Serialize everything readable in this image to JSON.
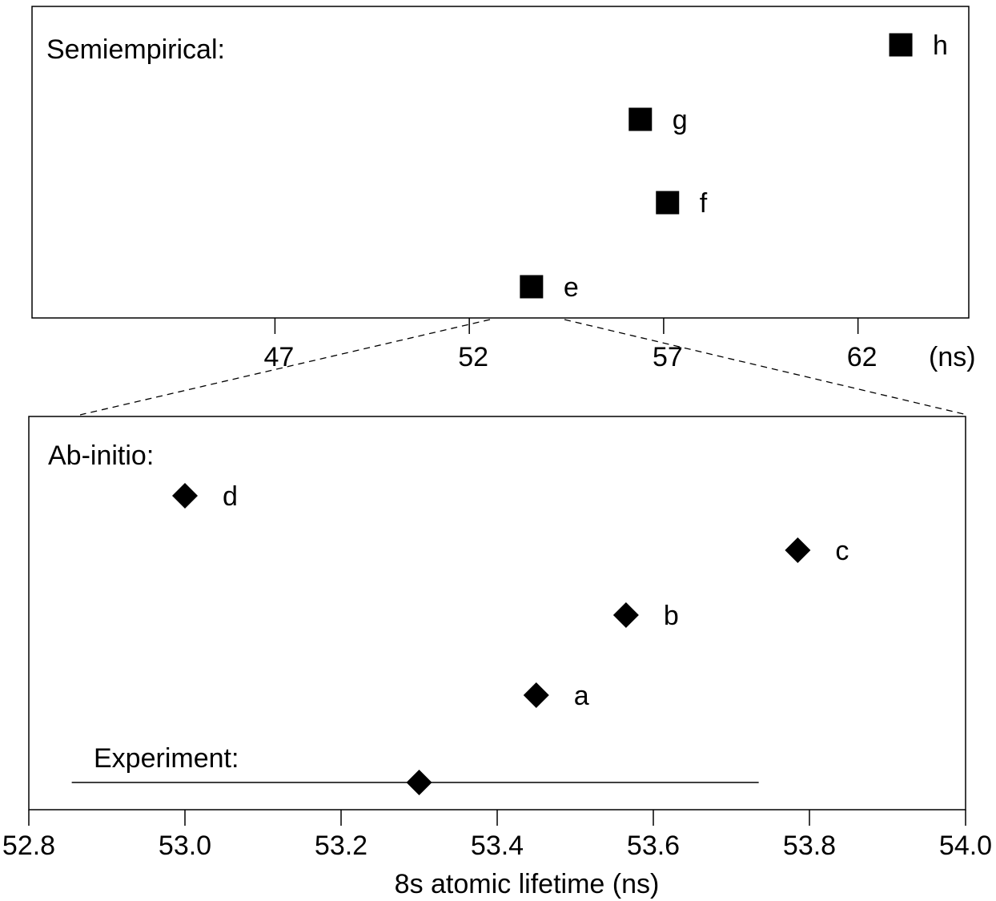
{
  "chart_data": [
    {
      "type": "scatter",
      "title": "Semiempirical:",
      "xlim": [
        40.75,
        64.85
      ],
      "x_ticks": [
        47,
        52,
        57,
        62
      ],
      "x_unit_label": "(ns)",
      "marker": "square",
      "points": [
        {
          "label": "e",
          "x": 53.6
        },
        {
          "label": "f",
          "x": 57.1
        },
        {
          "label": "g",
          "x": 56.4
        },
        {
          "label": "h",
          "x": 63.1
        }
      ]
    },
    {
      "type": "scatter",
      "title": "Ab-initio:",
      "xlim": [
        52.8,
        54.0
      ],
      "x_ticks": [
        "52.8",
        "53.0",
        "53.2",
        "53.4",
        "53.6",
        "53.8",
        "54.0"
      ],
      "xlabel": "8s atomic lifetime (ns)",
      "marker": "diamond",
      "points": [
        {
          "label": "a",
          "x": 53.45
        },
        {
          "label": "b",
          "x": 53.565
        },
        {
          "label": "c",
          "x": 53.785
        },
        {
          "label": "d",
          "x": 53.0
        }
      ],
      "experiment": {
        "label": "Experiment:",
        "x": 53.3,
        "xmin": 52.855,
        "xmax": 53.735
      }
    }
  ]
}
